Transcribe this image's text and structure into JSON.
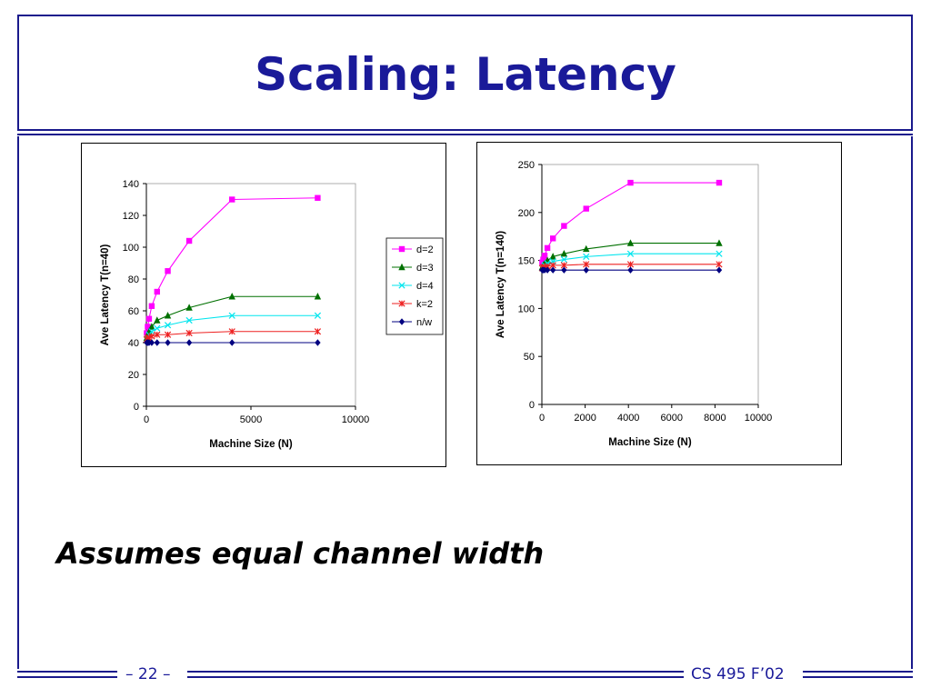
{
  "slide": {
    "title": "Scaling: Latency",
    "subtitle": "Assumes equal channel width",
    "page_number": "– 22 –",
    "course": "CS 495 F’02"
  },
  "colors": {
    "accent": "#1a1a8c"
  },
  "chart_data": [
    {
      "type": "line",
      "xlabel": "Machine Size (N)",
      "ylabel": "Ave Latency T(n=40)",
      "xlim": [
        0,
        10000
      ],
      "ylim": [
        0,
        140
      ],
      "xticks": [
        0,
        5000,
        10000
      ],
      "yticks": [
        0,
        20,
        40,
        60,
        80,
        100,
        120,
        140
      ],
      "legend": "right",
      "series": [
        {
          "name": "d=2",
          "color": "#ff00ff",
          "marker": "square",
          "x": [
            16,
            64,
            128,
            256,
            512,
            1024,
            2048,
            4096,
            8192
          ],
          "y": [
            46,
            50,
            55,
            63,
            72,
            85,
            104,
            130,
            131
          ]
        },
        {
          "name": "d=3",
          "color": "#007000",
          "marker": "triangle",
          "x": [
            16,
            64,
            128,
            256,
            512,
            1024,
            2048,
            4096,
            8192
          ],
          "y": [
            43,
            45,
            47,
            50,
            54,
            57,
            62,
            69,
            69
          ]
        },
        {
          "name": "d=4",
          "color": "#00e5ee",
          "marker": "x",
          "x": [
            16,
            64,
            128,
            256,
            512,
            1024,
            2048,
            4096,
            8192
          ],
          "y": [
            42,
            43,
            45,
            47,
            49,
            51,
            54,
            57,
            57
          ]
        },
        {
          "name": "k=2",
          "color": "#ee2020",
          "marker": "star",
          "x": [
            16,
            64,
            128,
            256,
            512,
            1024,
            2048,
            4096,
            8192
          ],
          "y": [
            42,
            43,
            43,
            44,
            45,
            45,
            46,
            47,
            47
          ]
        },
        {
          "name": "n/w",
          "color": "#000080",
          "marker": "diamond",
          "x": [
            16,
            64,
            128,
            256,
            512,
            1024,
            2048,
            4096,
            8192
          ],
          "y": [
            40,
            40,
            40,
            40,
            40,
            40,
            40,
            40,
            40
          ]
        }
      ]
    },
    {
      "type": "line",
      "xlabel": "Machine Size (N)",
      "ylabel": "Ave Latency T(n=140)",
      "xlim": [
        0,
        10000
      ],
      "ylim": [
        0,
        250
      ],
      "xticks": [
        0,
        2000,
        4000,
        6000,
        8000,
        10000
      ],
      "yticks": [
        0,
        50,
        100,
        150,
        200,
        250
      ],
      "legend": "none",
      "series": [
        {
          "color": "#ff00ff",
          "marker": "square",
          "x": [
            16,
            64,
            128,
            256,
            512,
            1024,
            2048,
            4096,
            8192
          ],
          "y": [
            148,
            151,
            155,
            163,
            173,
            186,
            204,
            231,
            231
          ]
        },
        {
          "color": "#007000",
          "marker": "triangle",
          "x": [
            16,
            64,
            128,
            256,
            512,
            1024,
            2048,
            4096,
            8192
          ],
          "y": [
            143,
            145,
            147,
            150,
            154,
            157,
            162,
            168,
            168
          ]
        },
        {
          "color": "#00e5ee",
          "marker": "x",
          "x": [
            16,
            64,
            128,
            256,
            512,
            1024,
            2048,
            4096,
            8192
          ],
          "y": [
            142,
            143,
            145,
            147,
            149,
            151,
            154,
            157,
            157
          ]
        },
        {
          "color": "#ee2020",
          "marker": "star",
          "x": [
            16,
            64,
            128,
            256,
            512,
            1024,
            2048,
            4096,
            8192
          ],
          "y": [
            142,
            143,
            143,
            144,
            145,
            145,
            146,
            146,
            146
          ]
        },
        {
          "color": "#000080",
          "marker": "diamond",
          "x": [
            16,
            64,
            128,
            256,
            512,
            1024,
            2048,
            4096,
            8192
          ],
          "y": [
            140,
            140,
            140,
            140,
            140,
            140,
            140,
            140,
            140
          ]
        }
      ]
    }
  ]
}
